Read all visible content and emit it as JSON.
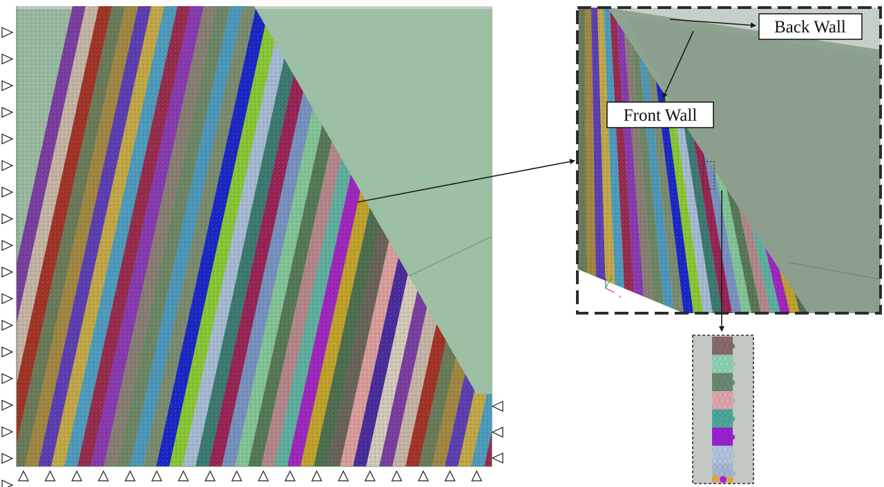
{
  "labels": {
    "back_wall": "Back Wall",
    "front_wall": "Front Wall"
  },
  "axis_triad": {
    "y": "y",
    "x": "x"
  },
  "colors": {
    "wall_fill": "#9dbfa4",
    "wall_fill_zoom": "#8fa391",
    "back_wall_strip": "#c6d0c8",
    "arrow": "#1a1a1a",
    "dash_border": "#2b2b2b",
    "support_outline": "#1a1a1a",
    "strip_palette": [
      "#7c3fa3",
      "#cbb9a9",
      "#a53427",
      "#6d7e5a",
      "#a68a43",
      "#5e3fb6",
      "#c7ac48",
      "#4f9fc2",
      "#9b2c4e",
      "#8a3bb4",
      "#8c8175",
      "#6f8a68",
      "#4e9bbf",
      "#7d8f71",
      "#1b27c9",
      "#8ccc34",
      "#a9bfd8",
      "#3d7d73",
      "#9a2456",
      "#7a95c4",
      "#86c99a",
      "#587b58",
      "#b78a8d",
      "#61b3a4",
      "#a227c0",
      "#c6a62b",
      "#4f7150",
      "#6b655a",
      "#e0a19f",
      "#4b2d9f",
      "#d9cfbe"
    ],
    "column_layers": [
      "#8a6b6b",
      "#8fd4b4",
      "#6b8a70",
      "#e0a7b0",
      "#4ea89c",
      "#9b22d1",
      "#b2c6df",
      "#a7b9d2"
    ]
  },
  "supports": {
    "left_count": 18,
    "bottom_count": 18,
    "right_count": 3
  }
}
